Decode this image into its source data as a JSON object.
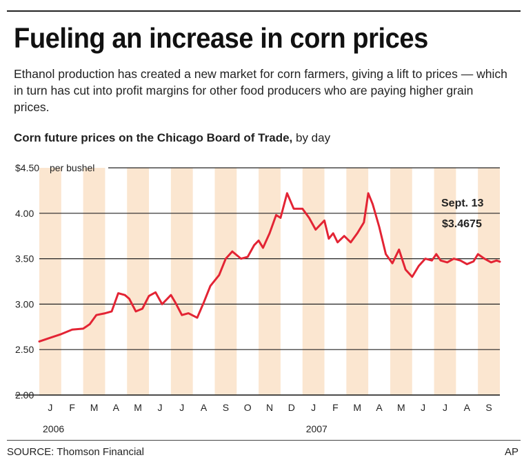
{
  "header": {
    "title": "Fueling an increase in corn prices",
    "subtitle": "Ethanol production has created a new market for corn farmers, giving a lift to prices — which in turn has cut into profit margins for other food producers who are paying higher grain prices.",
    "chart_heading_bold": "Corn future prices on the Chicago Board of Trade,",
    "chart_heading_rest": " by day"
  },
  "footer": {
    "source": "SOURCE: Thomson Financial",
    "credit": "AP"
  },
  "colors": {
    "line": "#e32434",
    "band": "#fbe6d0",
    "grid": "#222222"
  },
  "chart_data": {
    "type": "line",
    "title": "Corn future prices on the Chicago Board of Trade, by day",
    "y_unit_label": "per bushel",
    "ylim": [
      2.0,
      4.5
    ],
    "y_ticks": [
      "$4.50",
      "4.00",
      "3.50",
      "3.00",
      "2.50",
      "2.00"
    ],
    "y_tick_values": [
      4.5,
      4.0,
      3.5,
      3.0,
      2.5,
      2.0
    ],
    "months": [
      "J",
      "F",
      "M",
      "A",
      "M",
      "J",
      "J",
      "A",
      "S",
      "O",
      "N",
      "D",
      "J",
      "F",
      "M",
      "A",
      "M",
      "J",
      "J",
      "A",
      "S"
    ],
    "years": [
      {
        "label": "2006",
        "month_index": 0
      },
      {
        "label": "2007",
        "month_index": 12
      }
    ],
    "grid": "horizontal",
    "shaded_alternate_months": true,
    "annotation": {
      "label": "Sept. 13",
      "value_label": "$3.4675",
      "value": 3.4675
    },
    "series": [
      {
        "x": [
          0,
          0.5,
          1,
          1.5,
          2,
          2.3,
          2.6,
          3,
          3.3,
          3.6,
          3.9,
          4.1,
          4.4,
          4.7,
          5,
          5.3,
          5.6,
          6,
          6.2,
          6.5,
          6.8,
          7.2,
          7.5,
          7.8,
          8.2,
          8.5,
          8.8,
          9.2,
          9.5,
          9.8,
          10,
          10.2,
          10.5,
          10.8,
          11,
          11.3,
          11.6,
          12,
          12.3,
          12.6,
          13,
          13.2,
          13.4,
          13.6,
          13.9,
          14.2,
          14.5,
          14.8,
          15,
          15.2,
          15.5,
          15.8,
          16.1,
          16.4,
          16.7,
          17,
          17.3,
          17.6,
          17.9,
          18.1,
          18.3,
          18.6,
          18.9,
          19.2,
          19.5,
          19.8,
          20,
          20.3,
          20.6,
          20.85,
          21
        ],
        "values": [
          2.59,
          2.63,
          2.67,
          2.72,
          2.73,
          2.78,
          2.88,
          2.9,
          2.92,
          3.12,
          3.1,
          3.06,
          2.92,
          2.95,
          3.09,
          3.13,
          3.0,
          3.1,
          3.02,
          2.88,
          2.9,
          2.85,
          3.02,
          3.2,
          3.32,
          3.5,
          3.58,
          3.5,
          3.52,
          3.65,
          3.7,
          3.62,
          3.78,
          3.98,
          3.95,
          4.22,
          4.05,
          4.05,
          3.95,
          3.82,
          3.92,
          3.72,
          3.78,
          3.68,
          3.75,
          3.68,
          3.78,
          3.9,
          4.22,
          4.1,
          3.85,
          3.55,
          3.45,
          3.6,
          3.38,
          3.3,
          3.42,
          3.5,
          3.48,
          3.55,
          3.48,
          3.46,
          3.5,
          3.48,
          3.44,
          3.47,
          3.55,
          3.5,
          3.46,
          3.48,
          3.4675
        ]
      }
    ]
  }
}
